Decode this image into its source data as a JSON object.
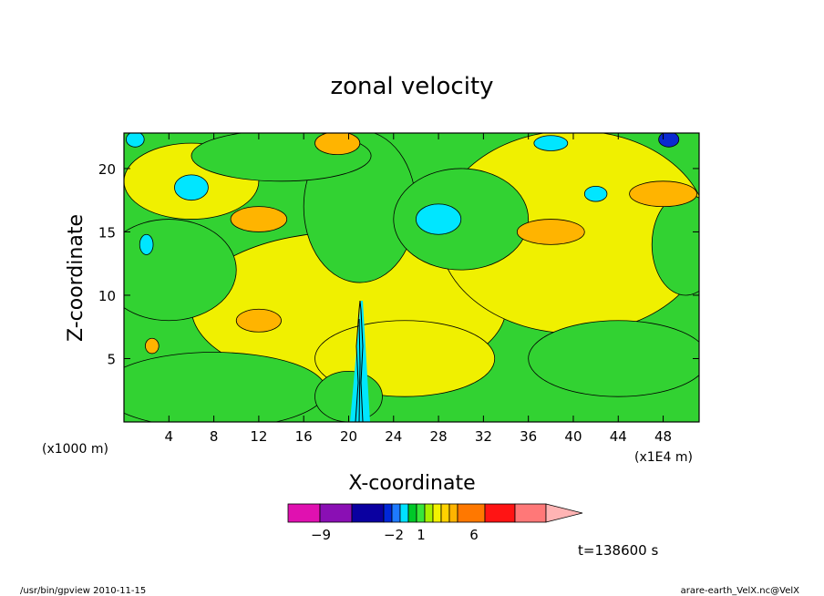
{
  "chart_data": {
    "type": "heatmap",
    "title": "zonal velocity",
    "xlabel": "X-coordinate",
    "ylabel": "Z-coordinate",
    "x_unit": "(x1E4 m)",
    "y_unit": "(x1000 m)",
    "x_ticks": [
      4,
      8,
      12,
      16,
      20,
      24,
      28,
      32,
      36,
      40,
      44,
      48
    ],
    "y_ticks": [
      5,
      10,
      15,
      20
    ],
    "xlim": [
      0,
      51.2
    ],
    "ylim": [
      0,
      22.8
    ],
    "colorbar": {
      "labels": [
        {
          "value": -9,
          "text": "−9"
        },
        {
          "value": -2,
          "text": "−2"
        },
        {
          "value": 1,
          "text": "1"
        },
        {
          "value": 6,
          "text": "6"
        }
      ],
      "colors": [
        "#e011b0",
        "#8a0fb4",
        "#0a00a0",
        "#0027d8",
        "#1e7aff",
        "#00e1ff",
        "#00c828",
        "#38e63a",
        "#a8f000",
        "#f2f200",
        "#ffd200",
        "#ffb400",
        "#ff7800",
        "#ff1414",
        "#ff7878",
        "#ffb4b4"
      ]
    },
    "blobs": [
      {
        "color": "#f0f000",
        "cx": 20,
        "cy": 9,
        "rx": 14,
        "ry": 6
      },
      {
        "color": "#f0f000",
        "cx": 40,
        "cy": 15,
        "rx": 12,
        "ry": 8
      },
      {
        "color": "#f0f000",
        "cx": 6,
        "cy": 19,
        "rx": 6,
        "ry": 3
      },
      {
        "color": "#f0f000",
        "cx": 25,
        "cy": 5,
        "rx": 8,
        "ry": 3
      },
      {
        "color": "#32d232",
        "cx": 8,
        "cy": 2.5,
        "rx": 10,
        "ry": 3
      },
      {
        "color": "#32d232",
        "cx": 4,
        "cy": 12,
        "rx": 6,
        "ry": 4
      },
      {
        "color": "#32d232",
        "cx": 21,
        "cy": 17,
        "rx": 5,
        "ry": 6
      },
      {
        "color": "#32d232",
        "cx": 30,
        "cy": 16,
        "rx": 6,
        "ry": 4
      },
      {
        "color": "#32d232",
        "cx": 44,
        "cy": 5,
        "rx": 8,
        "ry": 3
      },
      {
        "color": "#32d232",
        "cx": 50,
        "cy": 14,
        "rx": 3,
        "ry": 4
      },
      {
        "color": "#32d232",
        "cx": 14,
        "cy": 21,
        "rx": 8,
        "ry": 2
      },
      {
        "color": "#32d232",
        "cx": 20,
        "cy": 2,
        "rx": 3,
        "ry": 2
      },
      {
        "color": "#00e6ff",
        "cx": 28,
        "cy": 16,
        "rx": 2,
        "ry": 1.2
      },
      {
        "color": "#00e6ff",
        "cx": 6,
        "cy": 18.5,
        "rx": 1.5,
        "ry": 1
      },
      {
        "color": "#00e6ff",
        "cx": 2,
        "cy": 14,
        "rx": 0.6,
        "ry": 0.8
      },
      {
        "color": "#00e6ff",
        "cx": 38,
        "cy": 22,
        "rx": 1.5,
        "ry": 0.6
      },
      {
        "color": "#00e6ff",
        "cx": 42,
        "cy": 18,
        "rx": 1,
        "ry": 0.6
      },
      {
        "color": "#00e6ff",
        "cx": 1,
        "cy": 22.3,
        "rx": 0.8,
        "ry": 0.6
      },
      {
        "color": "#ffb400",
        "cx": 48,
        "cy": 18,
        "rx": 3,
        "ry": 1
      },
      {
        "color": "#ffb400",
        "cx": 12,
        "cy": 16,
        "rx": 2.5,
        "ry": 1
      },
      {
        "color": "#ffb400",
        "cx": 38,
        "cy": 15,
        "rx": 3,
        "ry": 1
      },
      {
        "color": "#ffb400",
        "cx": 12,
        "cy": 8,
        "rx": 2,
        "ry": 0.9
      },
      {
        "color": "#ffb400",
        "cx": 19,
        "cy": 22,
        "rx": 2,
        "ry": 0.9
      },
      {
        "color": "#ffb400",
        "cx": 2.5,
        "cy": 6,
        "rx": 0.6,
        "ry": 0.6
      },
      {
        "color": "#0a2ad0",
        "cx": 48.5,
        "cy": 22.3,
        "rx": 0.9,
        "ry": 0.6
      }
    ],
    "line_color": "#000000"
  },
  "footer": {
    "time_label": "t=138600 s",
    "source": "/usr/bin/gpview   2010-11-15",
    "file": "arare-earth_VelX.nc@VelX"
  }
}
